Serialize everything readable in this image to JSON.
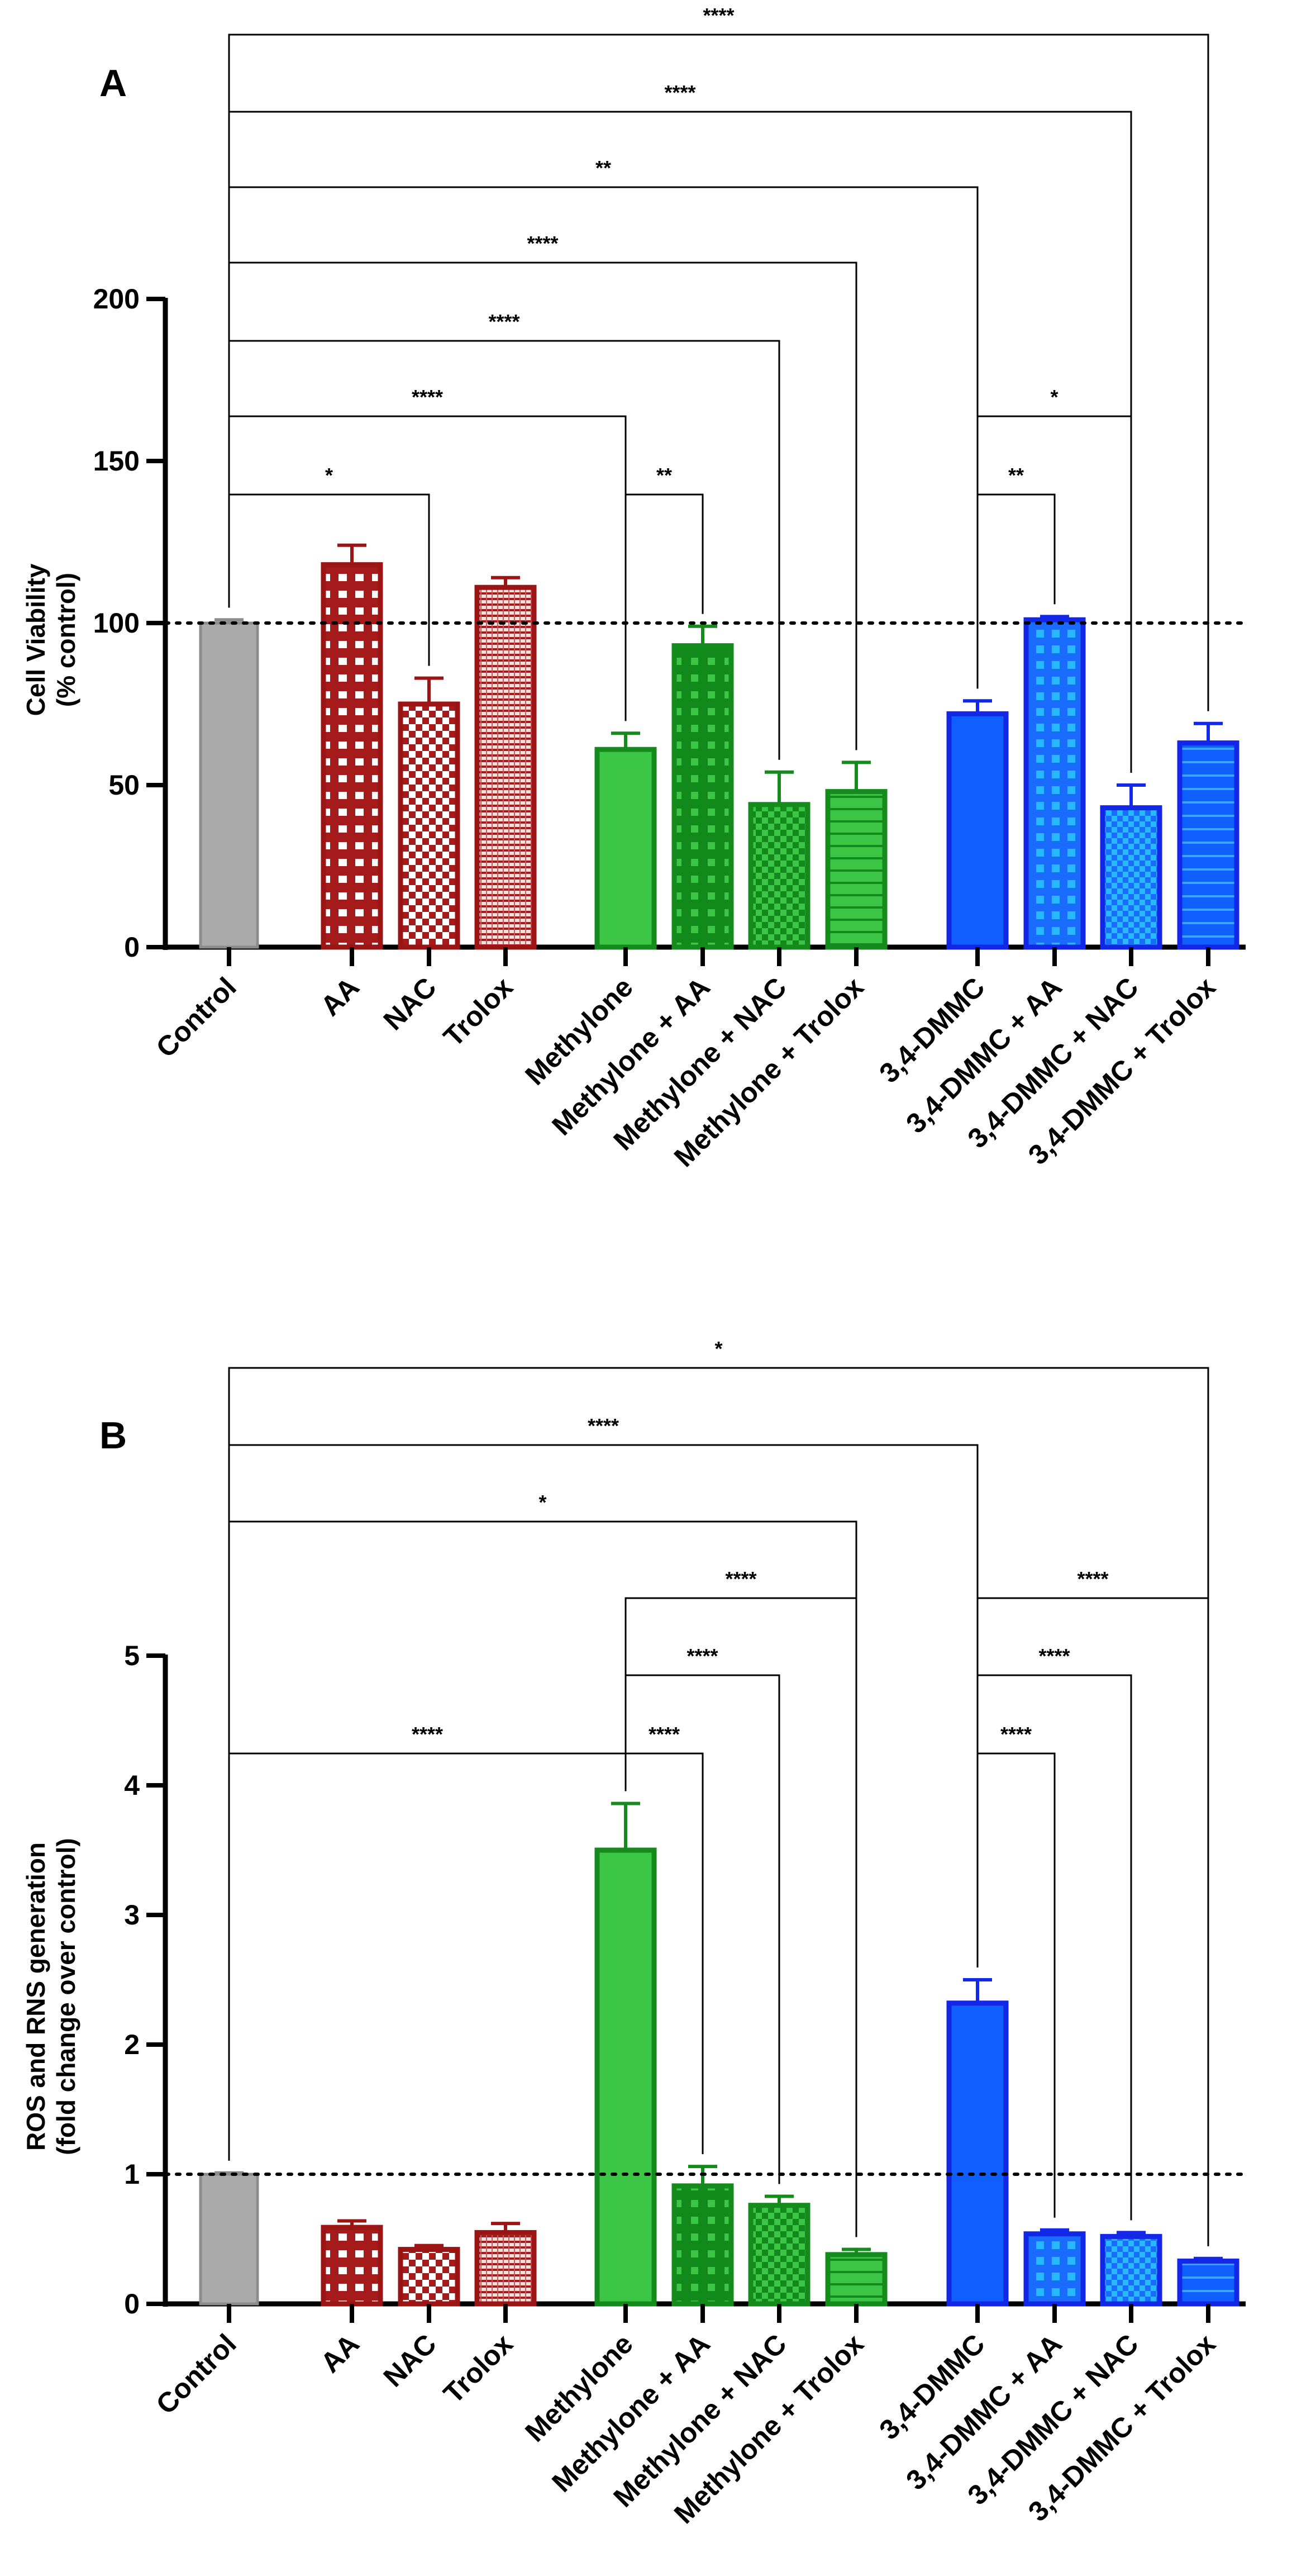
{
  "categories": [
    "Control",
    "AA",
    "NAC",
    "Trolox",
    "Methylone",
    "Methylone + AA",
    "Methylone + NAC",
    "Methylone + Trolox",
    "3,4-DMMC",
    "3,4-DMMC + AA",
    "3,4-DMMC + NAC",
    "3,4-DMMC + Trolox"
  ],
  "colors": {
    "control_fill": "#aaaaaa",
    "control_edge": "#8c8c8c",
    "red_fill": "#a51b1b",
    "red_edge": "#9b1515",
    "green_fill": "#3cc646",
    "green_edge": "#158a1d",
    "green_dark": "#118a1b",
    "blue_fill": "#0f5eff",
    "blue_edge": "#1327e6",
    "blue_light": "#27b8ff"
  },
  "chart_data": [
    {
      "type": "bar",
      "panel_label": "A",
      "title": "",
      "xlabel": "",
      "ylabel": "Cell Viability (% control)",
      "ylabel_lines": [
        "Cell Viability",
        "(% control)"
      ],
      "ylim": [
        0,
        200
      ],
      "yticks": [
        0,
        50,
        100,
        150,
        200
      ],
      "reference_line": 100,
      "values": [
        100,
        118,
        75,
        111,
        61,
        93,
        44,
        48,
        72,
        101,
        43,
        63
      ],
      "errors": [
        1,
        6,
        8,
        3,
        5,
        6,
        10,
        9,
        4,
        1,
        7,
        6
      ],
      "significance": [
        {
          "from": "Control",
          "to": "NAC",
          "label": "*"
        },
        {
          "from": "Control",
          "to": "Methylone",
          "label": "****"
        },
        {
          "from": "Methylone",
          "to": "Methylone + AA",
          "label": "**"
        },
        {
          "from": "Control",
          "to": "Methylone + NAC",
          "label": "****"
        },
        {
          "from": "Control",
          "to": "Methylone + Trolox",
          "label": "****"
        },
        {
          "from": "3,4-DMMC",
          "to": "3,4-DMMC + AA",
          "label": "**"
        },
        {
          "from": "3,4-DMMC",
          "to": "3,4-DMMC + NAC",
          "label": "*"
        },
        {
          "from": "Control",
          "to": "3,4-DMMC",
          "label": "**"
        },
        {
          "from": "Control",
          "to": "3,4-DMMC + NAC",
          "label": "****"
        },
        {
          "from": "Control",
          "to": "3,4-DMMC + Trolox",
          "label": "****"
        }
      ]
    },
    {
      "type": "bar",
      "panel_label": "B",
      "title": "",
      "xlabel": "",
      "ylabel": "ROS and RNS generation (fold change over control)",
      "ylabel_lines": [
        "ROS and RNS generation",
        "(fold change over control)"
      ],
      "ylim": [
        0,
        5
      ],
      "yticks": [
        0,
        1,
        2,
        3,
        4,
        5
      ],
      "reference_line": 1,
      "values": [
        1.0,
        0.59,
        0.42,
        0.55,
        3.5,
        0.91,
        0.76,
        0.38,
        2.32,
        0.54,
        0.52,
        0.33
      ],
      "errors": [
        0.01,
        0.05,
        0.03,
        0.07,
        0.36,
        0.15,
        0.07,
        0.04,
        0.18,
        0.03,
        0.03,
        0.02
      ],
      "significance": [
        {
          "from": "Control",
          "to": "Methylone",
          "label": "****"
        },
        {
          "from": "Methylone",
          "to": "Methylone + AA",
          "label": "****"
        },
        {
          "from": "Methylone",
          "to": "Methylone + NAC",
          "label": "****"
        },
        {
          "from": "Methylone",
          "to": "Methylone + Trolox",
          "label": "****"
        },
        {
          "from": "3,4-DMMC",
          "to": "3,4-DMMC + AA",
          "label": "****"
        },
        {
          "from": "3,4-DMMC",
          "to": "3,4-DMMC + NAC",
          "label": "****"
        },
        {
          "from": "3,4-DMMC",
          "to": "3,4-DMMC + Trolox",
          "label": "****"
        },
        {
          "from": "Control",
          "to": "Methylone + Trolox",
          "label": "*"
        },
        {
          "from": "Control",
          "to": "3,4-DMMC",
          "label": "****"
        },
        {
          "from": "Control",
          "to": "3,4-DMMC + Trolox",
          "label": "*"
        }
      ]
    }
  ]
}
